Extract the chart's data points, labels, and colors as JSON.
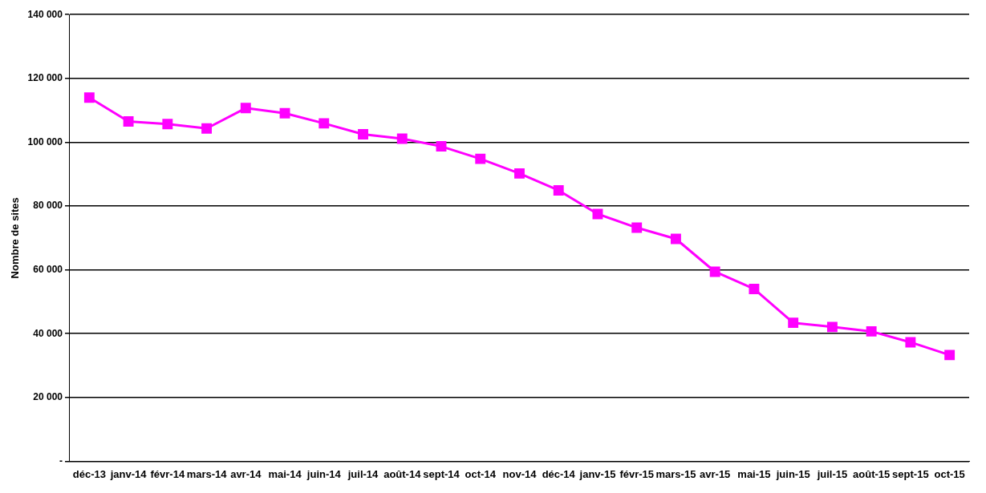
{
  "chart_data": {
    "type": "line",
    "ylabel": "Nombre de sites",
    "categories": [
      "déc-13",
      "janv-14",
      "févr-14",
      "mars-14",
      "avr-14",
      "mai-14",
      "juin-14",
      "juil-14",
      "août-14",
      "sept-14",
      "oct-14",
      "nov-14",
      "déc-14",
      "janv-15",
      "févr-15",
      "mars-15",
      "avr-15",
      "mai-15",
      "juin-15",
      "juil-15",
      "août-15",
      "sept-15",
      "oct-15"
    ],
    "series": [
      {
        "color": "#ff00ff",
        "values": [
          114000,
          106500,
          105700,
          104300,
          110700,
          109100,
          105900,
          102500,
          101100,
          98700,
          94800,
          90200,
          84900,
          77500,
          73200,
          69700,
          59400,
          54000,
          43400,
          42100,
          40700,
          37300,
          33300
        ]
      }
    ],
    "ylim": [
      0,
      140000
    ],
    "yticks": [
      {
        "value": 0,
        "label": "-"
      },
      {
        "value": 20000,
        "label": "20 000"
      },
      {
        "value": 40000,
        "label": "40 000"
      },
      {
        "value": 60000,
        "label": "60 000"
      },
      {
        "value": 80000,
        "label": "80 000"
      },
      {
        "value": 100000,
        "label": "100 000"
      },
      {
        "value": 120000,
        "label": "120 000"
      },
      {
        "value": 140000,
        "label": "140 000"
      }
    ],
    "grid": "y",
    "legend": false,
    "marker": "square",
    "line_style": "solid"
  }
}
